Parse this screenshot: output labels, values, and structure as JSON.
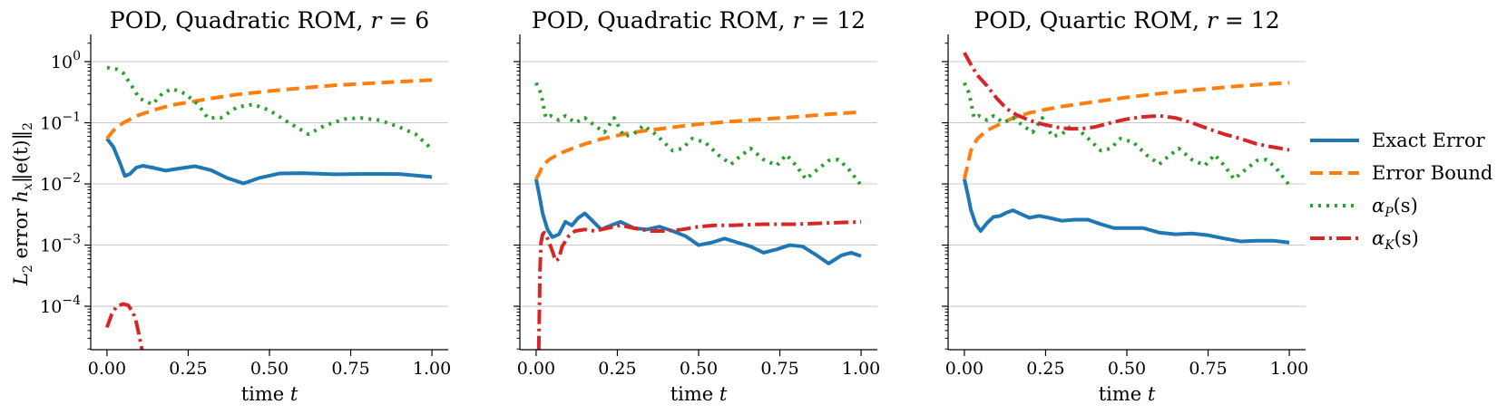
{
  "chart_data": [
    {
      "type": "line",
      "title": "POD, Quadratic ROM, r = 6",
      "title_parts": {
        "prefix": "POD, Quadratic ROM, ",
        "var": "r",
        "rel": " = 6"
      },
      "xlabel": "time t",
      "xlabel_parts": {
        "prefix": "time ",
        "var": "t"
      },
      "ylabel": "L2 error hx||e(t)||2",
      "yscale": "log",
      "xlim": [
        -0.05,
        1.05
      ],
      "ylim": [
        1.95e-05,
        2.6
      ],
      "xticks": [
        "0.00",
        "0.25",
        "0.50",
        "0.75",
        "1.00"
      ],
      "xtick_values": [
        0,
        0.25,
        0.5,
        0.75,
        1.0
      ],
      "ytick_values": [
        0.0001,
        0.001,
        0.01,
        0.1,
        1
      ],
      "ytick_labels": [
        {
          "b": "10",
          "e": "−4"
        },
        {
          "b": "10",
          "e": "−3"
        },
        {
          "b": "10",
          "e": "−2"
        },
        {
          "b": "10",
          "e": "−1"
        },
        {
          "b": "10",
          "e": "0"
        }
      ],
      "show_yticklabels": true,
      "grid": "y-major",
      "series": [
        {
          "name": "Exact Error",
          "color": "#1f77b4",
          "dash": "",
          "x": [
            0,
            0.02,
            0.04,
            0.055,
            0.07,
            0.09,
            0.11,
            0.14,
            0.18,
            0.22,
            0.27,
            0.32,
            0.37,
            0.42,
            0.47,
            0.53,
            0.6,
            0.7,
            0.8,
            0.9,
            1.0
          ],
          "y": [
            0.055,
            0.04,
            0.022,
            0.0135,
            0.0145,
            0.0185,
            0.0198,
            0.0185,
            0.0165,
            0.0178,
            0.0195,
            0.0168,
            0.0125,
            0.0102,
            0.0126,
            0.0148,
            0.015,
            0.0144,
            0.0146,
            0.0145,
            0.013
          ]
        },
        {
          "name": "Error Bound",
          "color": "#ff7f0e",
          "dash": "14,7",
          "x": [
            0,
            0.02,
            0.05,
            0.1,
            0.15,
            0.2,
            0.3,
            0.4,
            0.5,
            0.6,
            0.7,
            0.8,
            0.9,
            1.0
          ],
          "y": [
            0.055,
            0.075,
            0.1,
            0.135,
            0.165,
            0.195,
            0.24,
            0.29,
            0.33,
            0.37,
            0.41,
            0.44,
            0.47,
            0.5
          ]
        },
        {
          "name": "αP(s)",
          "color": "#2ca02c",
          "dash": "3,6",
          "x": [
            0,
            0.03,
            0.05,
            0.07,
            0.1,
            0.14,
            0.17,
            0.2,
            0.24,
            0.28,
            0.31,
            0.35,
            0.4,
            0.45,
            0.5,
            0.56,
            0.62,
            0.67,
            0.73,
            0.78,
            0.84,
            0.9,
            0.95,
            1.0
          ],
          "y": [
            0.8,
            0.75,
            0.65,
            0.45,
            0.25,
            0.2,
            0.3,
            0.36,
            0.3,
            0.2,
            0.12,
            0.12,
            0.18,
            0.2,
            0.16,
            0.1,
            0.065,
            0.09,
            0.115,
            0.12,
            0.11,
            0.085,
            0.065,
            0.037
          ]
        },
        {
          "name": "αK(s)",
          "color": "#d62728",
          "dash": "16,5,3,5",
          "x": [
            0,
            0.015,
            0.03,
            0.05,
            0.065,
            0.08,
            0.09,
            0.1,
            0.105,
            0.108
          ],
          "y": [
            4.5e-05,
            7.5e-05,
            0.0001,
            0.000109,
            0.000104,
            8e-05,
            5.5e-05,
            3.2e-05,
            2.3e-05,
            1.9e-05
          ]
        }
      ]
    },
    {
      "type": "line",
      "title": "POD, Quadratic ROM, r = 12",
      "title_parts": {
        "prefix": "POD, Quadratic ROM, ",
        "var": "r",
        "rel": " = 12"
      },
      "xlabel": "time t",
      "xlabel_parts": {
        "prefix": "time ",
        "var": "t"
      },
      "yscale": "log",
      "xlim": [
        -0.05,
        1.05
      ],
      "ylim": [
        1.95e-05,
        2.6
      ],
      "xticks": [
        "0.00",
        "0.25",
        "0.50",
        "0.75",
        "1.00"
      ],
      "xtick_values": [
        0,
        0.25,
        0.5,
        0.75,
        1.0
      ],
      "ytick_values": [
        0.0001,
        0.001,
        0.01,
        0.1,
        1
      ],
      "show_yticklabels": false,
      "grid": "y-major",
      "series": [
        {
          "name": "Exact Error",
          "color": "#1f77b4",
          "dash": "",
          "x": [
            0,
            0.01,
            0.02,
            0.035,
            0.05,
            0.07,
            0.09,
            0.11,
            0.13,
            0.15,
            0.17,
            0.2,
            0.23,
            0.26,
            0.3,
            0.34,
            0.38,
            0.42,
            0.46,
            0.5,
            0.54,
            0.58,
            0.62,
            0.66,
            0.7,
            0.74,
            0.78,
            0.82,
            0.86,
            0.9,
            0.94,
            0.97,
            1.0
          ],
          "y": [
            0.012,
            0.0065,
            0.0033,
            0.0018,
            0.00135,
            0.0015,
            0.0024,
            0.0021,
            0.0028,
            0.0033,
            0.0026,
            0.0018,
            0.0021,
            0.0024,
            0.0019,
            0.0018,
            0.002,
            0.0017,
            0.0014,
            0.001,
            0.0011,
            0.00128,
            0.0011,
            0.00095,
            0.00075,
            0.00085,
            0.001,
            0.00095,
            0.0007,
            0.0005,
            0.00068,
            0.00075,
            0.00066
          ]
        },
        {
          "name": "Error Bound",
          "color": "#ff7f0e",
          "dash": "14,7",
          "x": [
            0,
            0.01,
            0.02,
            0.04,
            0.07,
            0.1,
            0.15,
            0.2,
            0.25,
            0.3,
            0.4,
            0.5,
            0.6,
            0.7,
            0.8,
            0.9,
            1.0
          ],
          "y": [
            0.012,
            0.015,
            0.02,
            0.025,
            0.031,
            0.036,
            0.045,
            0.054,
            0.062,
            0.07,
            0.082,
            0.095,
            0.105,
            0.115,
            0.125,
            0.138,
            0.15
          ]
        },
        {
          "name": "αP(s)",
          "color": "#2ca02c",
          "dash": "3,6",
          "x": [
            0,
            0.015,
            0.03,
            0.045,
            0.07,
            0.09,
            0.12,
            0.15,
            0.18,
            0.21,
            0.24,
            0.27,
            0.3,
            0.33,
            0.36,
            0.39,
            0.42,
            0.45,
            0.48,
            0.52,
            0.56,
            0.6,
            0.63,
            0.66,
            0.7,
            0.74,
            0.77,
            0.8,
            0.83,
            0.87,
            0.9,
            0.93,
            0.96,
            1.0
          ],
          "y": [
            0.45,
            0.3,
            0.12,
            0.13,
            0.11,
            0.13,
            0.1,
            0.12,
            0.09,
            0.07,
            0.12,
            0.06,
            0.065,
            0.09,
            0.07,
            0.05,
            0.035,
            0.038,
            0.055,
            0.048,
            0.03,
            0.021,
            0.029,
            0.038,
            0.025,
            0.02,
            0.03,
            0.02,
            0.012,
            0.018,
            0.024,
            0.025,
            0.018,
            0.0095
          ]
        },
        {
          "name": "αK(s)",
          "color": "#d62728",
          "dash": "16,5,3,5",
          "x": [
            0.008,
            0.01,
            0.012,
            0.015,
            0.02,
            0.025,
            0.03,
            0.04,
            0.05,
            0.06,
            0.07,
            0.08,
            0.1,
            0.12,
            0.15,
            0.18,
            0.22,
            0.26,
            0.3,
            0.35,
            0.4,
            0.45,
            0.5,
            0.55,
            0.6,
            0.7,
            0.8,
            0.9,
            1.0
          ],
          "y": [
            1.9e-05,
            8e-05,
            0.0004,
            0.0011,
            0.0015,
            0.0016,
            0.0015,
            0.0011,
            0.0008,
            0.00055,
            0.0006,
            0.00095,
            0.0014,
            0.0017,
            0.0018,
            0.0017,
            0.0019,
            0.0021,
            0.0019,
            0.0017,
            0.0017,
            0.0018,
            0.002,
            0.0021,
            0.0021,
            0.0022,
            0.0022,
            0.0023,
            0.0024
          ]
        }
      ]
    },
    {
      "type": "line",
      "title": "POD, Quartic ROM, r = 12",
      "title_parts": {
        "prefix": "POD, Quartic ROM, ",
        "var": "r",
        "rel": " = 12"
      },
      "xlabel": "time t",
      "xlabel_parts": {
        "prefix": "time ",
        "var": "t"
      },
      "yscale": "log",
      "xlim": [
        -0.05,
        1.05
      ],
      "ylim": [
        1.95e-05,
        2.6
      ],
      "xticks": [
        "0.00",
        "0.25",
        "0.50",
        "0.75",
        "1.00"
      ],
      "xtick_values": [
        0,
        0.25,
        0.5,
        0.75,
        1.0
      ],
      "ytick_values": [
        0.0001,
        0.001,
        0.01,
        0.1,
        1
      ],
      "show_yticklabels": false,
      "grid": "y-major",
      "series": [
        {
          "name": "Exact Error",
          "color": "#1f77b4",
          "dash": "",
          "x": [
            0,
            0.01,
            0.02,
            0.035,
            0.05,
            0.07,
            0.09,
            0.11,
            0.13,
            0.15,
            0.17,
            0.2,
            0.23,
            0.26,
            0.3,
            0.34,
            0.38,
            0.42,
            0.46,
            0.5,
            0.55,
            0.6,
            0.65,
            0.7,
            0.75,
            0.8,
            0.85,
            0.9,
            0.95,
            1.0
          ],
          "y": [
            0.012,
            0.007,
            0.0038,
            0.0022,
            0.0017,
            0.0023,
            0.0029,
            0.003,
            0.0034,
            0.0037,
            0.0033,
            0.0028,
            0.003,
            0.0028,
            0.0025,
            0.0026,
            0.0026,
            0.0022,
            0.0019,
            0.0019,
            0.0019,
            0.0016,
            0.0015,
            0.00155,
            0.00145,
            0.00128,
            0.00115,
            0.00118,
            0.00118,
            0.0011
          ]
        },
        {
          "name": "Error Bound",
          "color": "#ff7f0e",
          "dash": "14,7",
          "x": [
            0,
            0.01,
            0.02,
            0.04,
            0.07,
            0.1,
            0.15,
            0.2,
            0.25,
            0.3,
            0.4,
            0.5,
            0.6,
            0.7,
            0.8,
            0.9,
            1.0
          ],
          "y": [
            0.012,
            0.02,
            0.035,
            0.055,
            0.075,
            0.09,
            0.12,
            0.145,
            0.165,
            0.185,
            0.22,
            0.26,
            0.3,
            0.34,
            0.38,
            0.42,
            0.45
          ]
        },
        {
          "name": "αP(s)",
          "color": "#2ca02c",
          "dash": "3,6",
          "x": [
            0,
            0.015,
            0.03,
            0.045,
            0.07,
            0.09,
            0.12,
            0.15,
            0.18,
            0.21,
            0.24,
            0.27,
            0.3,
            0.33,
            0.36,
            0.39,
            0.42,
            0.45,
            0.48,
            0.52,
            0.56,
            0.6,
            0.63,
            0.66,
            0.7,
            0.74,
            0.77,
            0.8,
            0.83,
            0.87,
            0.9,
            0.93,
            0.96,
            1.0
          ],
          "y": [
            0.45,
            0.3,
            0.12,
            0.13,
            0.11,
            0.13,
            0.1,
            0.12,
            0.09,
            0.07,
            0.12,
            0.06,
            0.065,
            0.09,
            0.07,
            0.05,
            0.035,
            0.038,
            0.055,
            0.048,
            0.03,
            0.021,
            0.029,
            0.038,
            0.025,
            0.02,
            0.03,
            0.02,
            0.012,
            0.018,
            0.024,
            0.025,
            0.018,
            0.0095
          ]
        },
        {
          "name": "αK(s)",
          "color": "#d62728",
          "dash": "16,5,3,5",
          "x": [
            0,
            0.02,
            0.04,
            0.07,
            0.1,
            0.13,
            0.16,
            0.2,
            0.24,
            0.28,
            0.32,
            0.36,
            0.4,
            0.45,
            0.5,
            0.55,
            0.6,
            0.65,
            0.7,
            0.75,
            0.8,
            0.85,
            0.9,
            0.95,
            1.0
          ],
          "y": [
            1.4,
            0.9,
            0.6,
            0.4,
            0.25,
            0.17,
            0.135,
            0.11,
            0.095,
            0.085,
            0.08,
            0.08,
            0.085,
            0.1,
            0.115,
            0.125,
            0.13,
            0.12,
            0.1,
            0.08,
            0.065,
            0.055,
            0.045,
            0.04,
            0.036
          ]
        }
      ]
    }
  ],
  "shared_ylabel": {
    "prefix": "L",
    "prefix_sub": "2",
    "middle": " error ",
    "var": "h",
    "var_sub": "x",
    "rest": "‖e(t)‖",
    "rest_sub": "2"
  },
  "legend": {
    "placement": "right-center",
    "entries": [
      {
        "label": "Exact Error",
        "color": "#1f77b4",
        "dash": ""
      },
      {
        "label": "Error Bound",
        "color": "#ff7f0e",
        "dash": "14,7"
      },
      {
        "label_prefix": "α",
        "label_sub": "P",
        "label_suffix": "(s)",
        "color": "#2ca02c",
        "dash": "3,6"
      },
      {
        "label_prefix": "α",
        "label_sub": "K",
        "label_suffix": "(s)",
        "color": "#d62728",
        "dash": "16,5,3,5"
      }
    ]
  }
}
